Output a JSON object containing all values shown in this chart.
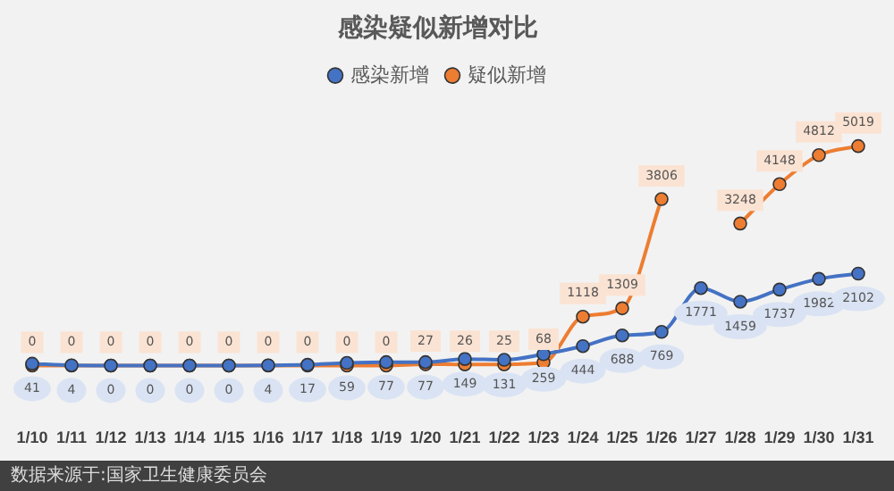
{
  "chart_data": {
    "type": "line",
    "title": "感染疑似新增对比",
    "categories": [
      "1/10",
      "1/11",
      "1/12",
      "1/13",
      "1/14",
      "1/15",
      "1/16",
      "1/17",
      "1/18",
      "1/19",
      "1/20",
      "1/21",
      "1/22",
      "1/23",
      "1/24",
      "1/25",
      "1/26",
      "1/27",
      "1/28",
      "1/29",
      "1/30",
      "1/31"
    ],
    "series": [
      {
        "name": "感染新增",
        "color": "#4472c4",
        "values": [
          41,
          4,
          0,
          0,
          0,
          0,
          4,
          17,
          59,
          77,
          77,
          149,
          131,
          259,
          444,
          688,
          769,
          1771,
          1459,
          1737,
          1982,
          2102
        ]
      },
      {
        "name": "疑似新增",
        "color": "#ed7d31",
        "values": [
          0,
          0,
          0,
          0,
          0,
          0,
          0,
          0,
          0,
          0,
          27,
          26,
          25,
          68,
          1118,
          1309,
          3806,
          null,
          3248,
          4148,
          4812,
          5019
        ]
      }
    ],
    "tick_labels": "x",
    "legend": "top",
    "marker": "circle",
    "data_labels": true,
    "annotations": [
      "数据来源于:国家卫生健康委员会"
    ]
  }
}
